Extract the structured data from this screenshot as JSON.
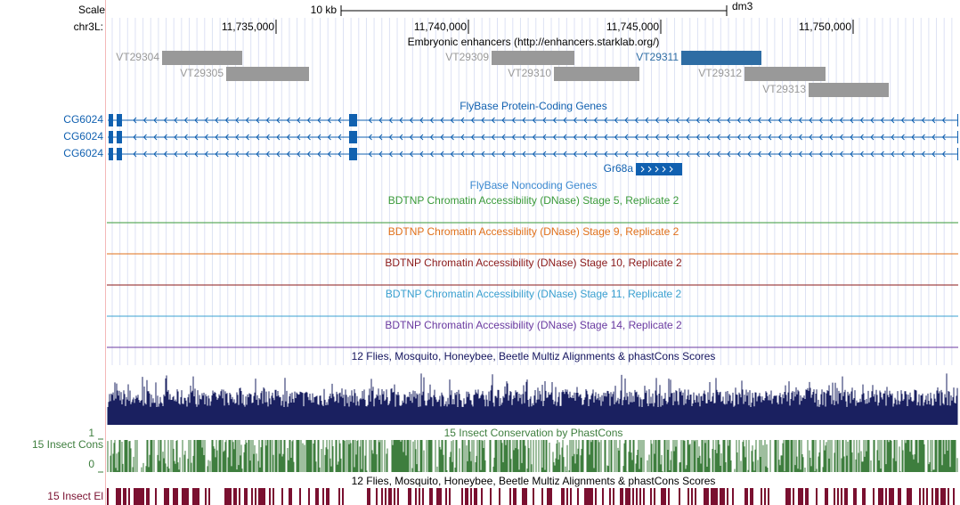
{
  "header": {
    "scale_label": "Scale",
    "scale_bar": "10 kb",
    "assembly": "dm3",
    "chrom": "chr3L:",
    "positions": [
      "11,735,000",
      "11,740,000",
      "11,745,000",
      "11,750,000"
    ]
  },
  "tracks": {
    "enhancers": {
      "title": "Embryonic enhancers (http://enhancers.starklab.org/)",
      "items": [
        "VT29304",
        "VT29305",
        "VT29309",
        "VT29310",
        "VT29311",
        "VT29312",
        "VT29313"
      ]
    },
    "protein_coding": {
      "title": "FlyBase Protein-Coding Genes",
      "genes": [
        "CG6024",
        "CG6024",
        "CG6024"
      ],
      "gene_extra": "Gr68a"
    },
    "noncoding": {
      "title": "FlyBase Noncoding Genes"
    },
    "dnase": [
      "BDTNP Chromatin Accessibility (DNase) Stage 5, Replicate 2",
      "BDTNP Chromatin Accessibility (DNase) Stage 9, Replicate 2",
      "BDTNP Chromatin Accessibility (DNase) Stage 10, Replicate 2",
      "BDTNP Chromatin Accessibility (DNase) Stage 11, Replicate 2",
      "BDTNP Chromatin Accessibility (DNase) Stage 14, Replicate 2"
    ],
    "multiz": {
      "title": "12 Flies, Mosquito, Honeybee, Beetle Multiz Alignments & phastCons Scores"
    },
    "phastcons": {
      "title": "15 Insect Conservation by PhastCons",
      "side_label": "15 Insect Cons",
      "top": "1",
      "bottom": "0"
    },
    "elements": {
      "title": "12 Flies, Mosquito, Honeybee, Beetle Multiz Alignments & phastCons Scores",
      "side_label": "15 Insect El"
    }
  }
}
